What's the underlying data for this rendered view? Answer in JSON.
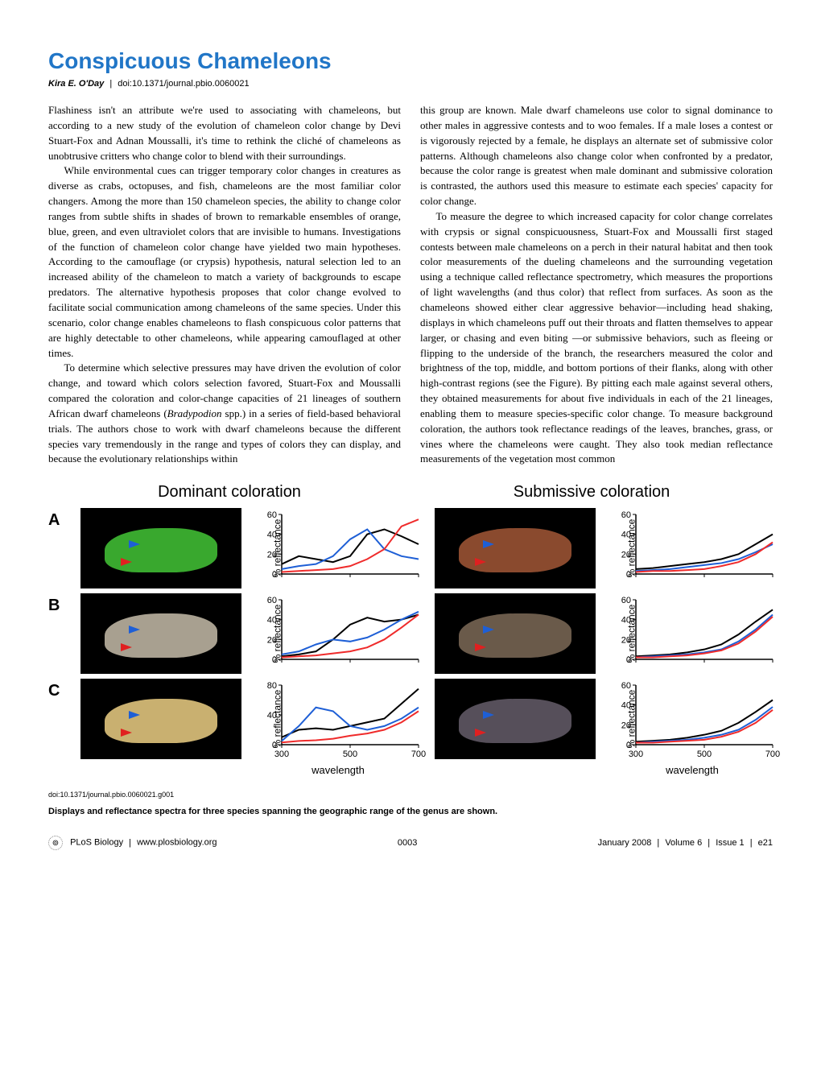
{
  "title": "Conspicuous Chameleons",
  "author": "Kira E. O'Day",
  "doi": "doi:10.1371/journal.pbio.0060021",
  "paragraphs": {
    "p1": "Flashiness isn't an attribute we're used to associating with chameleons, but according to a new study of the evolution of chameleon color change by Devi Stuart-Fox and Adnan Moussalli, it's time to rethink the cliché of chameleons as unobtrusive critters who change color to blend with their surroundings.",
    "p2": "While environmental cues can trigger temporary color changes in creatures as diverse as crabs, octopuses, and fish, chameleons are the most familiar color changers. Among the more than 150 chameleon species, the ability to change color ranges from subtle shifts in shades of brown to remarkable ensembles of orange, blue, green, and even ultraviolet colors that are invisible to humans. Investigations of the function of chameleon color change have yielded two main hypotheses. According to the camouflage (or crypsis) hypothesis, natural selection led to an increased ability of the chameleon to match a variety of backgrounds to escape predators. The alternative hypothesis proposes that color change evolved to facilitate social communication among chameleons of the same species. Under this scenario, color change enables chameleons to flash conspicuous color patterns that are highly detectable to other chameleons, while appearing camouflaged at other times.",
    "p3a": "To determine which selective pressures may have driven the evolution of color change, and toward which colors selection favored, Stuart-Fox and Moussalli compared the coloration and color-change capacities of 21 lineages of southern African dwarf chameleons (",
    "p3i": "Bradypodion",
    "p3b": " spp.) in a series of field-based behavioral trials. The authors chose to work with dwarf chameleons because the different species vary tremendously in the range and types of colors they can display, and because the evolutionary relationships within",
    "p4": "this group are known. Male dwarf chameleons use color to signal dominance to other males in aggressive contests and to woo females. If a male loses a contest or is vigorously rejected by a female, he displays an alternate set of submissive color patterns. Although chameleons also change color when confronted by a predator, because the color range is greatest when male dominant and submissive coloration is contrasted, the authors used this measure to estimate each species' capacity for color change.",
    "p5": "To measure the degree to which increased capacity for color change correlates with crypsis or signal conspicuousness, Stuart-Fox and Moussalli first staged contests between male chameleons on a perch in their natural habitat and then took color measurements of the dueling chameleons and the surrounding vegetation using a technique called reflectance spectrometry, which measures the proportions of light wavelengths (and thus color) that reflect from surfaces. As soon as the chameleons showed either clear aggressive behavior—including head shaking, displays in which chameleons puff out their throats and flatten themselves to appear larger, or chasing and even biting —or submissive behaviors, such as fleeing or flipping to the underside of the branch, the researchers measured the color and brightness of the top, middle, and bottom portions of their flanks, along with other high-contrast regions (see the Figure). By pitting each male against several others, they obtained measurements for about five individuals in each of the 21 lineages, enabling them to measure species-specific color change. To measure background coloration, the authors took reflectance readings of the leaves, branches, grass, or vines where the chameleons were caught. They also took median reflectance measurements of the vegetation most common"
  },
  "figure": {
    "header_dominant": "Dominant coloration",
    "header_submissive": "Submissive coloration",
    "rows": [
      "A",
      "B",
      "C"
    ],
    "ylabel": "% reflectance",
    "xlabel": "wavelength",
    "xticks": [
      300,
      500,
      700
    ],
    "colors": {
      "series_black": "#000000",
      "series_blue": "#1e5fd6",
      "series_red": "#ef2b2b",
      "axis": "#000000"
    },
    "charts": {
      "A_dom": {
        "yticks": [
          0,
          20,
          40,
          60
        ],
        "ymax": 60,
        "black": [
          [
            300,
            10
          ],
          [
            350,
            18
          ],
          [
            400,
            15
          ],
          [
            450,
            12
          ],
          [
            500,
            18
          ],
          [
            550,
            40
          ],
          [
            600,
            45
          ],
          [
            650,
            38
          ],
          [
            700,
            30
          ]
        ],
        "blue": [
          [
            300,
            5
          ],
          [
            350,
            8
          ],
          [
            400,
            10
          ],
          [
            450,
            18
          ],
          [
            500,
            35
          ],
          [
            550,
            45
          ],
          [
            600,
            25
          ],
          [
            650,
            18
          ],
          [
            700,
            15
          ]
        ],
        "red": [
          [
            300,
            2
          ],
          [
            350,
            3
          ],
          [
            400,
            4
          ],
          [
            450,
            5
          ],
          [
            500,
            8
          ],
          [
            550,
            15
          ],
          [
            600,
            25
          ],
          [
            650,
            48
          ],
          [
            700,
            55
          ]
        ]
      },
      "A_sub": {
        "yticks": [
          0,
          20,
          40,
          60
        ],
        "ymax": 60,
        "black": [
          [
            300,
            5
          ],
          [
            350,
            6
          ],
          [
            400,
            8
          ],
          [
            450,
            10
          ],
          [
            500,
            12
          ],
          [
            550,
            15
          ],
          [
            600,
            20
          ],
          [
            650,
            30
          ],
          [
            700,
            40
          ]
        ],
        "blue": [
          [
            300,
            3
          ],
          [
            350,
            4
          ],
          [
            400,
            5
          ],
          [
            450,
            7
          ],
          [
            500,
            9
          ],
          [
            550,
            11
          ],
          [
            600,
            15
          ],
          [
            650,
            22
          ],
          [
            700,
            30
          ]
        ],
        "red": [
          [
            300,
            2
          ],
          [
            350,
            3
          ],
          [
            400,
            3
          ],
          [
            450,
            4
          ],
          [
            500,
            5
          ],
          [
            550,
            8
          ],
          [
            600,
            12
          ],
          [
            650,
            20
          ],
          [
            700,
            32
          ]
        ]
      },
      "B_dom": {
        "yticks": [
          0,
          20,
          40,
          60
        ],
        "ymax": 60,
        "black": [
          [
            300,
            3
          ],
          [
            350,
            5
          ],
          [
            400,
            8
          ],
          [
            450,
            20
          ],
          [
            500,
            35
          ],
          [
            550,
            42
          ],
          [
            600,
            38
          ],
          [
            650,
            40
          ],
          [
            700,
            45
          ]
        ],
        "blue": [
          [
            300,
            5
          ],
          [
            350,
            8
          ],
          [
            400,
            15
          ],
          [
            450,
            20
          ],
          [
            500,
            18
          ],
          [
            550,
            22
          ],
          [
            600,
            30
          ],
          [
            650,
            40
          ],
          [
            700,
            48
          ]
        ],
        "red": [
          [
            300,
            2
          ],
          [
            350,
            3
          ],
          [
            400,
            4
          ],
          [
            450,
            6
          ],
          [
            500,
            8
          ],
          [
            550,
            12
          ],
          [
            600,
            20
          ],
          [
            650,
            32
          ],
          [
            700,
            45
          ]
        ]
      },
      "B_sub": {
        "yticks": [
          0,
          20,
          40,
          60
        ],
        "ymax": 60,
        "black": [
          [
            300,
            3
          ],
          [
            350,
            4
          ],
          [
            400,
            5
          ],
          [
            450,
            7
          ],
          [
            500,
            10
          ],
          [
            550,
            15
          ],
          [
            600,
            25
          ],
          [
            650,
            38
          ],
          [
            700,
            50
          ]
        ],
        "blue": [
          [
            300,
            2
          ],
          [
            350,
            3
          ],
          [
            400,
            4
          ],
          [
            450,
            5
          ],
          [
            500,
            7
          ],
          [
            550,
            10
          ],
          [
            600,
            18
          ],
          [
            650,
            30
          ],
          [
            700,
            45
          ]
        ],
        "red": [
          [
            300,
            2
          ],
          [
            350,
            2
          ],
          [
            400,
            3
          ],
          [
            450,
            4
          ],
          [
            500,
            6
          ],
          [
            550,
            9
          ],
          [
            600,
            16
          ],
          [
            650,
            28
          ],
          [
            700,
            43
          ]
        ]
      },
      "C_dom": {
        "yticks": [
          0,
          40,
          80
        ],
        "ymax": 80,
        "black": [
          [
            300,
            10
          ],
          [
            350,
            20
          ],
          [
            400,
            22
          ],
          [
            450,
            20
          ],
          [
            500,
            25
          ],
          [
            550,
            30
          ],
          [
            600,
            35
          ],
          [
            650,
            55
          ],
          [
            700,
            75
          ]
        ],
        "blue": [
          [
            300,
            5
          ],
          [
            350,
            25
          ],
          [
            400,
            50
          ],
          [
            450,
            45
          ],
          [
            500,
            25
          ],
          [
            550,
            20
          ],
          [
            600,
            25
          ],
          [
            650,
            35
          ],
          [
            700,
            50
          ]
        ],
        "red": [
          [
            300,
            3
          ],
          [
            350,
            5
          ],
          [
            400,
            6
          ],
          [
            450,
            8
          ],
          [
            500,
            12
          ],
          [
            550,
            15
          ],
          [
            600,
            20
          ],
          [
            650,
            30
          ],
          [
            700,
            45
          ]
        ]
      },
      "C_sub": {
        "yticks": [
          0,
          20,
          40,
          60
        ],
        "ymax": 60,
        "black": [
          [
            300,
            3
          ],
          [
            350,
            4
          ],
          [
            400,
            5
          ],
          [
            450,
            7
          ],
          [
            500,
            10
          ],
          [
            550,
            14
          ],
          [
            600,
            22
          ],
          [
            650,
            33
          ],
          [
            700,
            45
          ]
        ],
        "blue": [
          [
            300,
            2
          ],
          [
            350,
            3
          ],
          [
            400,
            4
          ],
          [
            450,
            5
          ],
          [
            500,
            7
          ],
          [
            550,
            10
          ],
          [
            600,
            15
          ],
          [
            650,
            25
          ],
          [
            700,
            38
          ]
        ],
        "red": [
          [
            300,
            2
          ],
          [
            350,
            2
          ],
          [
            400,
            3
          ],
          [
            450,
            4
          ],
          [
            500,
            5
          ],
          [
            550,
            8
          ],
          [
            600,
            13
          ],
          [
            650,
            22
          ],
          [
            700,
            35
          ]
        ]
      }
    },
    "chameleon_colors": {
      "A_dom": "#39a82e",
      "A_sub": "#8a4a2e",
      "B_dom": "#a8a090",
      "B_sub": "#6a5a4a",
      "C_dom": "#c9b070",
      "C_sub": "#564f5a"
    },
    "doi": "doi:10.1371/journal.pbio.0060021.g001",
    "caption": "Displays and reflectance spectra for three species spanning the geographic range of the genus are shown."
  },
  "footer": {
    "journal": "PLoS Biology",
    "site": "www.plosbiology.org",
    "page": "0003",
    "date": "January 2008",
    "volume": "Volume 6",
    "issue": "Issue 1",
    "eloc": "e21"
  }
}
